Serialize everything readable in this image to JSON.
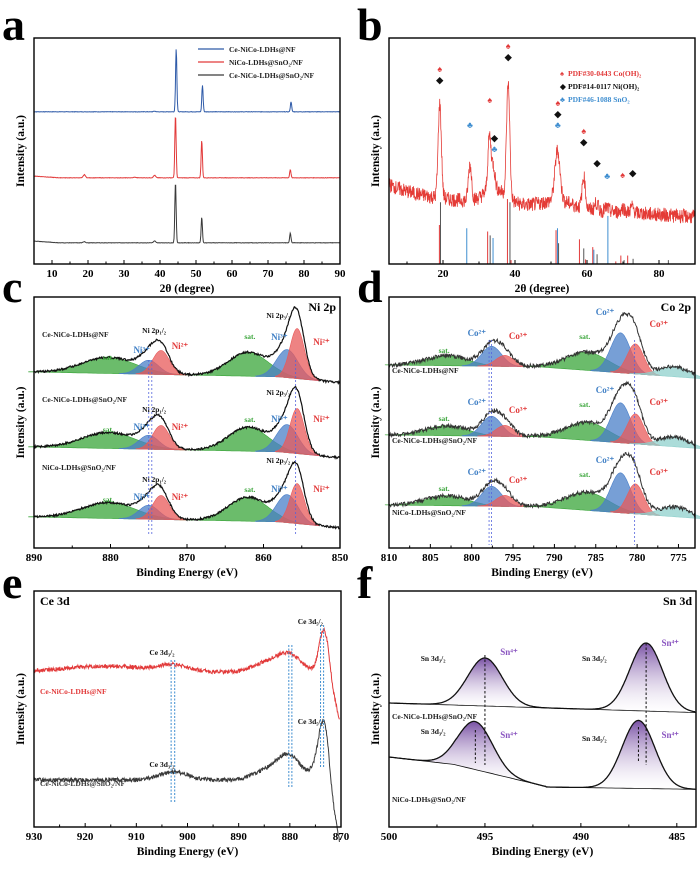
{
  "figure": {
    "panels": [
      "a",
      "b",
      "c",
      "d",
      "e",
      "f"
    ]
  },
  "chart_data": [
    {
      "panel": "a",
      "type": "line",
      "title": "",
      "xlabel": "2θ (degree)",
      "ylabel": "Intensity (a.u.)",
      "xlim": [
        5,
        90
      ],
      "xticks": [
        10,
        20,
        30,
        40,
        50,
        60,
        70,
        80,
        90
      ],
      "legend_position": "top-right",
      "series": [
        {
          "name": "Ce-NiCo-LDHs@NF",
          "color": "#2e5aa8",
          "offset": 2,
          "peaks": [
            [
              44.5,
              1.0
            ],
            [
              51.8,
              0.42
            ],
            [
              76.4,
              0.16
            ]
          ],
          "minor": [
            [
              38.5,
              0.01
            ]
          ]
        },
        {
          "name": "NiCo-LDHs@SnO2/NF",
          "color": "#e23a3a",
          "offset": 1,
          "peaks": [
            [
              44.3,
              1.0
            ],
            [
              51.6,
              0.6
            ],
            [
              76.2,
              0.13
            ]
          ],
          "minor": [
            [
              19.0,
              0.05
            ],
            [
              38.5,
              0.04
            ],
            [
              33.0,
              0.01
            ]
          ]
        },
        {
          "name": "Ce-NiCo-LDHs@SnO2/NF",
          "color": "#3a3a3a",
          "offset": 0,
          "peaks": [
            [
              44.3,
              1.0
            ],
            [
              51.6,
              0.42
            ],
            [
              76.2,
              0.16
            ]
          ],
          "minor": [
            [
              19.0,
              0.02
            ],
            [
              38.5,
              0.03
            ]
          ]
        }
      ]
    },
    {
      "panel": "b",
      "type": "line",
      "xlabel": "2θ (degree)",
      "ylabel": "Intensity (a.u.)",
      "xlim": [
        5,
        90
      ],
      "xticks": [
        20,
        40,
        60,
        80
      ],
      "legend_position": "top-right",
      "legend": [
        {
          "symbol": "spade",
          "color": "#e23a3a",
          "label": "PDF#30-0443 Co(OH)₂"
        },
        {
          "symbol": "diamond",
          "color": "#111111",
          "label": "PDF#14-0117 Ni(OH)₂"
        },
        {
          "symbol": "club",
          "color": "#3f8ed0",
          "label": "PDF#46-1088 SnO₂"
        }
      ],
      "pattern_peaks": [
        [
          19.1,
          0.78
        ],
        [
          27.5,
          0.3
        ],
        [
          32.9,
          0.45
        ],
        [
          34.0,
          0.18
        ],
        [
          38.1,
          0.95
        ],
        [
          51.8,
          0.42
        ],
        [
          59.1,
          0.26
        ],
        [
          62.6,
          0.06
        ],
        [
          65.5,
          0.03
        ],
        [
          70.0,
          0.04
        ],
        [
          72.5,
          0.05
        ]
      ],
      "markers": [
        {
          "x": 19.1,
          "symbols": [
            "spade",
            "diamond"
          ]
        },
        {
          "x": 27.5,
          "symbols": [
            "club"
          ]
        },
        {
          "x": 33.0,
          "symbols": [
            "spade"
          ]
        },
        {
          "x": 34.3,
          "symbols": [
            "diamond",
            "club"
          ]
        },
        {
          "x": 38.1,
          "symbols": [
            "spade",
            "diamond"
          ]
        },
        {
          "x": 51.9,
          "symbols": [
            "spade",
            "diamond",
            "club"
          ]
        },
        {
          "x": 59.1,
          "symbols": [
            "spade",
            "diamond"
          ]
        },
        {
          "x": 62.8,
          "symbols": [
            "diamond"
          ]
        },
        {
          "x": 65.6,
          "symbols": [
            "club"
          ]
        },
        {
          "x": 69.9,
          "symbols": [
            "spade"
          ]
        },
        {
          "x": 72.7,
          "symbols": [
            "diamond"
          ]
        }
      ],
      "reference_sticks": {
        "Co(OH)2": {
          "color": "#e23a3a",
          "x": [
            19.0,
            32.4,
            37.9,
            38.9,
            51.4,
            57.9,
            59.6,
            61.6,
            68.0,
            69.4,
            71.3
          ],
          "h": [
            0.6,
            0.5,
            1.0,
            0.06,
            0.52,
            0.38,
            0.07,
            0.26,
            0.04,
            0.13,
            0.13
          ]
        },
        "Ni(OH)2": {
          "color": "#555555",
          "x": [
            19.3,
            33.1,
            38.6,
            52.1,
            59.1,
            62.8,
            70.3,
            72.8,
            82.6
          ],
          "h": [
            0.95,
            0.44,
            0.95,
            0.32,
            0.24,
            0.15,
            0.06,
            0.08,
            0.06
          ]
        },
        "SnO2": {
          "color": "#3f8ed0",
          "x": [
            26.6,
            33.9,
            51.8,
            61.9,
            65.8
          ],
          "h": [
            0.55,
            0.4,
            0.55,
            0.22,
            0.74
          ]
        }
      }
    },
    {
      "panel": "c",
      "type": "line",
      "xlabel": "Binding Energy (eV)",
      "ylabel": "Intensity (a.u.)",
      "xlim": [
        890,
        850
      ],
      "xticks": [
        890,
        880,
        870,
        860,
        850
      ],
      "corner_label": "Ni 2p",
      "series_labels": [
        "Ce-NiCo-LDHs@NF",
        "Ce-NiCo-LDHs@SnO₂/NF",
        "NiCo-LDHs@SnO₂/NF"
      ],
      "peak_labels": {
        "p12": "Ni 2p₁/₂",
        "p32": "Ni 2p₃/₂",
        "ni3": "Ni³⁺",
        "ni2": "Ni²⁺",
        "sat": "sat."
      },
      "components": {
        "Ni2+_2p3/2": 855.6,
        "Ni3+_2p3/2": 856.9,
        "Ni2+_2p1/2": 873.4,
        "Ni3+_2p1/2": 875.0,
        "sat_2p3/2": 862.0,
        "sat_2p1/2": 880.2
      },
      "dashed_guides": [
        875.0,
        874.6,
        855.8
      ]
    },
    {
      "panel": "d",
      "type": "line",
      "xlabel": "Binding Energy (eV)",
      "ylabel": "Intensity (a.u.)",
      "xlim": [
        810,
        773
      ],
      "xticks": [
        810,
        805,
        800,
        795,
        790,
        785,
        780,
        775
      ],
      "corner_label": "Co 2p",
      "series_labels": [
        "Ce-NiCo-LDHs@NF",
        "Ce-NiCo-LDHs@SnO₂/NF",
        "NiCo-LDHs@SnO₂/NF"
      ],
      "peak_labels": {
        "co2": "Co²⁺",
        "co3": "Co³⁺",
        "sat": "sat."
      },
      "components": {
        "Co2+_2p3/2": 782.0,
        "Co3+_2p3/2": 780.2,
        "Co2+_2p1/2": 797.6,
        "Co3+_2p1/2": 796.0,
        "sat_2p3/2": 786.0,
        "sat_2p1/2": 803.0,
        "sat_low": 775.5
      },
      "dashed_guides": [
        797.6,
        797.9,
        780.3
      ]
    },
    {
      "panel": "e",
      "type": "line",
      "xlabel": "Binding Energy (eV)",
      "ylabel": "Intensity (a.u.)",
      "xlim": [
        930,
        870
      ],
      "xticks": [
        930,
        920,
        910,
        900,
        890,
        880,
        870
      ],
      "corner_label": "Ce 3d",
      "series": [
        {
          "name": "Ce-NiCo-LDHs@NF",
          "color": "#e23a3a"
        },
        {
          "name": "Ce-NiCo-LDHs@SnO₂/NF",
          "color": "#3a3a3a"
        }
      ],
      "peak_labels": {
        "d32": "Ce 3d₃/₂",
        "d52": "Ce 3d₅/₂"
      },
      "peaks": {
        "Ce 3d3/2": 902.7,
        "sat": 879.8,
        "Ce 3d5/2": 873.4
      },
      "dashed_guides": [
        903.2,
        902.5,
        880.2,
        879.6,
        874.0,
        873.4
      ]
    },
    {
      "panel": "f",
      "type": "line",
      "xlabel": "Binding Energy (eV)",
      "ylabel": "Intensity (a.u.)",
      "xlim": [
        500,
        484
      ],
      "xticks": [
        500,
        495,
        490,
        485
      ],
      "corner_label": "Sn 3d",
      "series_labels": [
        "Ce-NiCo-LDHs@SnO₂/NF",
        "NiCo-LDHs@SnO₂/NF"
      ],
      "peak_labels": {
        "d32": "Sn 3d₃/₂",
        "d52": "Sn 3d₅/₂",
        "sn4": "Sn⁴⁺"
      },
      "peaks": {
        "Ce-NiCo-LDHs@SnO2/NF": {
          "Sn 3d3/2": 495.0,
          "Sn 3d5/2": 486.6
        },
        "NiCo-LDHs@SnO2/NF": {
          "Sn 3d3/2": 495.5,
          "Sn 3d5/2": 487.0
        }
      }
    }
  ]
}
